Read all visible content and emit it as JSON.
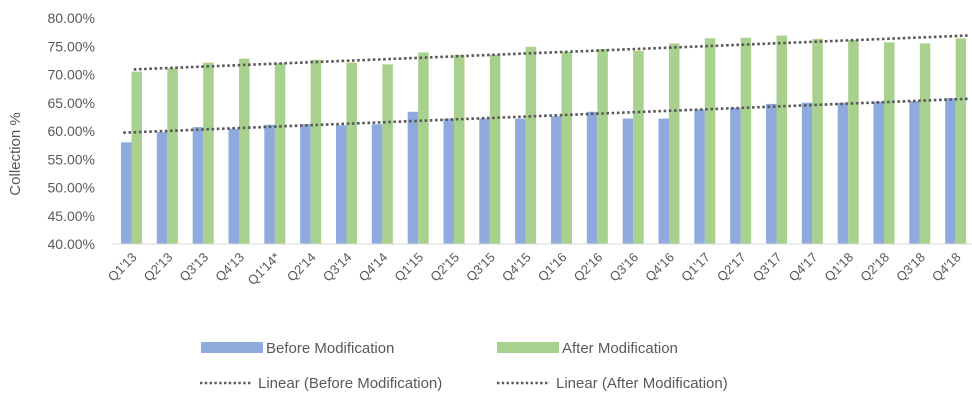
{
  "chart_data": {
    "type": "bar",
    "title": "",
    "xlabel": "",
    "ylabel": "Collection %",
    "ylim": [
      0.4,
      0.8
    ],
    "ytick_step": 0.05,
    "ytick_format": "percent_2dp",
    "grid": false,
    "legend_position": "bottom",
    "categories": [
      "Q1'13",
      "Q2'13",
      "Q3'13",
      "Q4'13",
      "Q1'14*",
      "Q2'14",
      "Q3'14",
      "Q4'14",
      "Q1'15",
      "Q2'15",
      "Q3'15",
      "Q4'15",
      "Q1'16",
      "Q2'16",
      "Q3'16",
      "Q4'16",
      "Q1'17",
      "Q2'17",
      "Q3'17",
      "Q4'17",
      "Q1'18",
      "Q2'18",
      "Q3'18",
      "Q4'18"
    ],
    "series": [
      {
        "name": "Before Modification",
        "color": "#8FAADC",
        "values": [
          0.58,
          0.598,
          0.607,
          0.604,
          0.611,
          0.612,
          0.61,
          0.612,
          0.634,
          0.622,
          0.622,
          0.622,
          0.626,
          0.634,
          0.622,
          0.622,
          0.638,
          0.641,
          0.648,
          0.65,
          0.65,
          0.652,
          0.653,
          0.658
        ]
      },
      {
        "name": "After Modification",
        "color": "#A9D18E",
        "values": [
          0.705,
          0.711,
          0.721,
          0.728,
          0.72,
          0.726,
          0.721,
          0.718,
          0.739,
          0.735,
          0.735,
          0.749,
          0.74,
          0.745,
          0.742,
          0.755,
          0.764,
          0.765,
          0.769,
          0.763,
          0.761,
          0.757,
          0.755,
          0.764
        ]
      }
    ],
    "trendlines": [
      {
        "name": "Linear (Before Modification)",
        "color": "#595959",
        "style": "dotted",
        "start": 0.597,
        "end": 0.657
      },
      {
        "name": "Linear (After Modification)",
        "color": "#595959",
        "style": "dotted",
        "start": 0.709,
        "end": 0.769
      }
    ]
  }
}
